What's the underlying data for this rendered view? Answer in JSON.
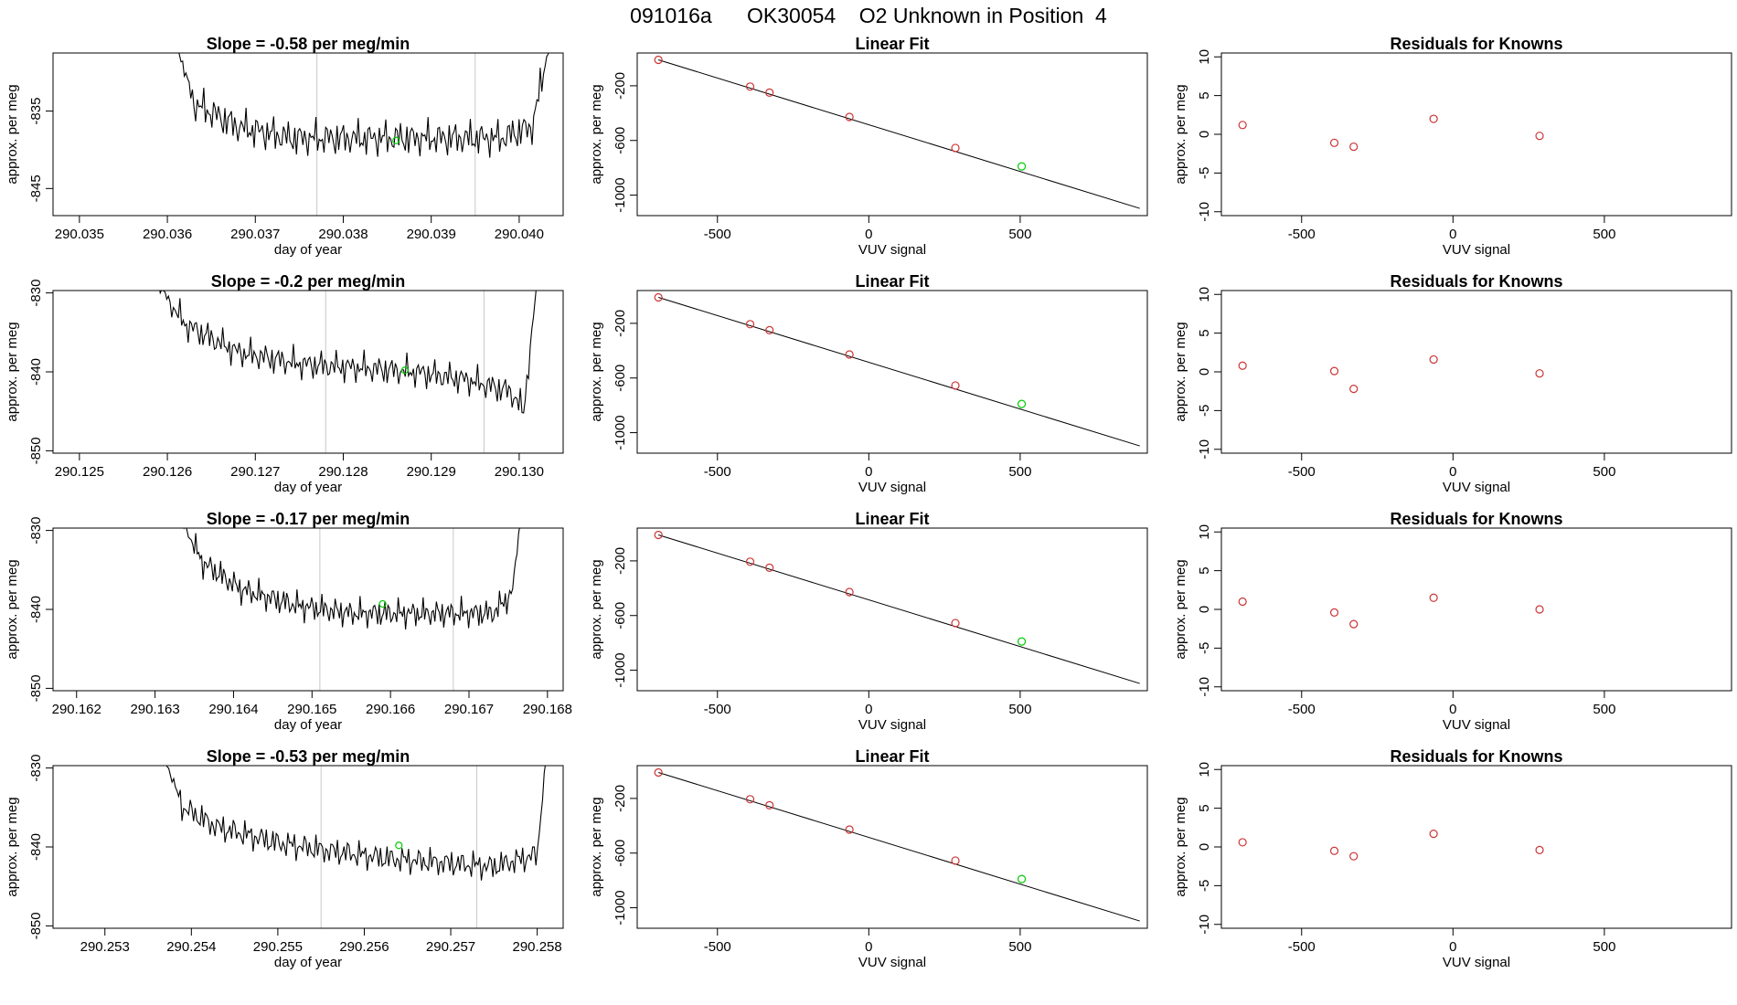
{
  "page_title": "091016a      OK30054    O2 Unknown in Position  4",
  "chart_data": [
    {
      "type": "line",
      "panel": "timeseries",
      "title": "Slope =  -0.58  per meg/min",
      "xlabel": "day of year",
      "ylabel": "approx. per meg",
      "xlim": [
        290.0347,
        290.0405
      ],
      "ylim": [
        -848.5,
        -827.5
      ],
      "xticks": [
        "290.035",
        "290.036",
        "290.037",
        "290.038",
        "290.039",
        "290.040"
      ],
      "xtick_values": [
        290.035,
        290.036,
        290.037,
        290.038,
        290.039,
        290.04
      ],
      "yticks": [
        "-835",
        "-845"
      ],
      "ytick_values": [
        -835,
        -845
      ],
      "x_start": 290.0361,
      "x_end": 290.04035,
      "y_start": -826,
      "y_end": -826,
      "wave_seed": 1,
      "wave_amp": 2.2,
      "profile_x": [
        290.0361,
        290.0363,
        290.0368,
        290.0374,
        290.038,
        290.0386,
        290.0392,
        290.0398,
        290.04015,
        290.04035
      ],
      "profile_y": [
        -826,
        -834,
        -837,
        -838.5,
        -838.5,
        -838.5,
        -838.5,
        -838.5,
        -837,
        -826
      ],
      "vlines": [
        290.0377,
        290.0395
      ],
      "marker": {
        "x": 290.0386,
        "y": -838.8,
        "color": "#00cc00"
      }
    },
    {
      "type": "scatter",
      "panel": "linear-fit",
      "title": "Linear Fit",
      "xlabel": "VUV signal",
      "ylabel": "approx. per meg",
      "xlim": [
        -765,
        920
      ],
      "ylim": [
        -1150,
        40
      ],
      "xticks": [
        "-500",
        "0",
        "500"
      ],
      "xtick_values": [
        -500,
        0,
        500
      ],
      "yticks": [
        "-200",
        "-600",
        "-1000"
      ],
      "ytick_values": [
        -200,
        -600,
        -1000
      ],
      "points_x": [
        -695,
        -392,
        -328,
        -64,
        286
      ],
      "points_y": [
        -10,
        -206,
        -250,
        -428,
        -655
      ],
      "point_color": "#cc3333",
      "unknown": {
        "x": 505,
        "y": -790,
        "color": "#00cc00"
      },
      "fit_line": [
        [
          -695,
          -10
        ],
        [
          895,
          -1097
        ]
      ]
    },
    {
      "type": "scatter",
      "panel": "residuals",
      "title": "Residuals for Knowns",
      "xlabel": "VUV signal",
      "ylabel": "approx. per meg",
      "xlim": [
        -765,
        920
      ],
      "ylim": [
        -10.5,
        10.5
      ],
      "xticks": [
        "-500",
        "0",
        "500"
      ],
      "xtick_values": [
        -500,
        0,
        500
      ],
      "yticks": [
        "10",
        "5",
        "0",
        "-5",
        "-10"
      ],
      "ytick_values": [
        10,
        5,
        0,
        -5,
        -10
      ],
      "points_x": [
        -695,
        -392,
        -328,
        -64,
        286
      ],
      "points_y": [
        1.2,
        -1.1,
        -1.6,
        2.0,
        -0.2
      ],
      "point_color": "#cc3333"
    },
    {
      "type": "line",
      "panel": "timeseries",
      "title": "Slope =  -0.2  per meg/min",
      "xlabel": "day of year",
      "ylabel": "approx. per meg",
      "xlim": [
        290.1247,
        290.1305
      ],
      "ylim": [
        -850.3,
        -829.7
      ],
      "xticks": [
        "290.125",
        "290.126",
        "290.127",
        "290.128",
        "290.129",
        "290.130"
      ],
      "xtick_values": [
        290.125,
        290.126,
        290.127,
        290.128,
        290.129,
        290.13
      ],
      "yticks": [
        "-830",
        "-840",
        "-850"
      ],
      "ytick_values": [
        -830,
        -840,
        -850
      ],
      "x_start": 290.1259,
      "x_end": 290.1302,
      "y_start": -829,
      "y_end": -829,
      "wave_seed": 2,
      "wave_amp": 1.8,
      "profile_x": [
        290.1259,
        290.1262,
        290.1268,
        290.1275,
        290.1282,
        290.1288,
        290.1294,
        290.1299,
        290.13005,
        290.1302
      ],
      "profile_y": [
        -829,
        -834,
        -837.5,
        -839,
        -839.5,
        -840,
        -841,
        -842.5,
        -845,
        -829
      ],
      "vlines": [
        290.1278,
        290.1296
      ],
      "marker": {
        "x": 290.1287,
        "y": -839.8,
        "color": "#00cc00"
      }
    },
    {
      "type": "scatter",
      "panel": "linear-fit",
      "title": "Linear Fit",
      "xlabel": "VUV signal",
      "ylabel": "approx. per meg",
      "xlim": [
        -765,
        920
      ],
      "ylim": [
        -1150,
        40
      ],
      "xticks": [
        "-500",
        "0",
        "500"
      ],
      "xtick_values": [
        -500,
        0,
        500
      ],
      "yticks": [
        "-200",
        "-600",
        "-1000"
      ],
      "ytick_values": [
        -200,
        -600,
        -1000
      ],
      "points_x": [
        -695,
        -392,
        -328,
        -64,
        286
      ],
      "points_y": [
        -10,
        -206,
        -250,
        -428,
        -655
      ],
      "point_color": "#cc3333",
      "unknown": {
        "x": 505,
        "y": -790,
        "color": "#00cc00"
      },
      "fit_line": [
        [
          -695,
          -10
        ],
        [
          895,
          -1097
        ]
      ]
    },
    {
      "type": "scatter",
      "panel": "residuals",
      "title": "Residuals for Knowns",
      "xlabel": "VUV signal",
      "ylabel": "approx. per meg",
      "xlim": [
        -765,
        920
      ],
      "ylim": [
        -10.5,
        10.5
      ],
      "xticks": [
        "-500",
        "0",
        "500"
      ],
      "xtick_values": [
        -500,
        0,
        500
      ],
      "yticks": [
        "10",
        "5",
        "0",
        "-5",
        "-10"
      ],
      "ytick_values": [
        10,
        5,
        0,
        -5,
        -10
      ],
      "points_x": [
        -695,
        -392,
        -328,
        -64,
        286
      ],
      "points_y": [
        0.8,
        0.1,
        -2.2,
        1.6,
        -0.2
      ],
      "point_color": "#cc3333"
    },
    {
      "type": "line",
      "panel": "timeseries",
      "title": "Slope =  -0.17  per meg/min",
      "xlabel": "day of year",
      "ylabel": "approx. per meg",
      "xlim": [
        290.1617,
        290.1682
      ],
      "ylim": [
        -850.3,
        -829.7
      ],
      "xticks": [
        "290.162",
        "290.163",
        "290.164",
        "290.165",
        "290.166",
        "290.167",
        "290.168"
      ],
      "xtick_values": [
        290.162,
        290.163,
        290.164,
        290.165,
        290.166,
        290.167,
        290.168
      ],
      "yticks": [
        "-830",
        "-840",
        "-850"
      ],
      "ytick_values": [
        -830,
        -840,
        -850
      ],
      "x_start": 290.16335,
      "x_end": 290.16765,
      "y_start": -829,
      "y_end": -829,
      "wave_seed": 3,
      "wave_amp": 1.7,
      "profile_x": [
        290.16335,
        290.1636,
        290.1641,
        290.1648,
        290.1655,
        290.1662,
        290.1668,
        290.1673,
        290.16755,
        290.16765
      ],
      "profile_y": [
        -829,
        -834,
        -837.5,
        -839.5,
        -840.5,
        -840.5,
        -840.5,
        -840.5,
        -838,
        -829
      ],
      "vlines": [
        290.1651,
        290.1668
      ],
      "marker": {
        "x": 290.1659,
        "y": -839.3,
        "color": "#00cc00"
      }
    },
    {
      "type": "scatter",
      "panel": "linear-fit",
      "title": "Linear Fit",
      "xlabel": "VUV signal",
      "ylabel": "approx. per meg",
      "xlim": [
        -765,
        920
      ],
      "ylim": [
        -1150,
        40
      ],
      "xticks": [
        "-500",
        "0",
        "500"
      ],
      "xtick_values": [
        -500,
        0,
        500
      ],
      "yticks": [
        "-200",
        "-600",
        "-1000"
      ],
      "ytick_values": [
        -200,
        -600,
        -1000
      ],
      "points_x": [
        -695,
        -392,
        -328,
        -64,
        286
      ],
      "points_y": [
        -10,
        -206,
        -250,
        -428,
        -655
      ],
      "point_color": "#cc3333",
      "unknown": {
        "x": 505,
        "y": -790,
        "color": "#00cc00"
      },
      "fit_line": [
        [
          -695,
          -10
        ],
        [
          895,
          -1097
        ]
      ]
    },
    {
      "type": "scatter",
      "panel": "residuals",
      "title": "Residuals for Knowns",
      "xlabel": "VUV signal",
      "ylabel": "approx. per meg",
      "xlim": [
        -765,
        920
      ],
      "ylim": [
        -10.5,
        10.5
      ],
      "xticks": [
        "-500",
        "0",
        "500"
      ],
      "xtick_values": [
        -500,
        0,
        500
      ],
      "yticks": [
        "10",
        "5",
        "0",
        "-5",
        "-10"
      ],
      "ytick_values": [
        10,
        5,
        0,
        -5,
        -10
      ],
      "points_x": [
        -695,
        -392,
        -328,
        -64,
        286
      ],
      "points_y": [
        1.0,
        -0.4,
        -1.9,
        1.5,
        0.0
      ],
      "point_color": "#cc3333"
    },
    {
      "type": "line",
      "panel": "timeseries",
      "title": "Slope =  -0.53  per meg/min",
      "xlabel": "day of year",
      "ylabel": "approx. per meg",
      "xlim": [
        290.2524,
        290.2583
      ],
      "ylim": [
        -850.3,
        -829.7
      ],
      "xticks": [
        "290.253",
        "290.254",
        "290.255",
        "290.256",
        "290.257",
        "290.258"
      ],
      "xtick_values": [
        290.253,
        290.254,
        290.255,
        290.256,
        290.257,
        290.258
      ],
      "yticks": [
        "-830",
        "-840",
        "-850"
      ],
      "ytick_values": [
        -830,
        -840,
        -850
      ],
      "x_start": 290.2537,
      "x_end": 290.2581,
      "y_start": -829,
      "y_end": -829,
      "wave_seed": 4,
      "wave_amp": 1.7,
      "profile_x": [
        290.2537,
        290.2539,
        290.2543,
        290.255,
        290.2556,
        290.2563,
        290.2569,
        290.2575,
        290.258,
        290.2581
      ],
      "profile_y": [
        -829,
        -835,
        -837.5,
        -839.5,
        -840.5,
        -841.5,
        -842,
        -842.5,
        -841,
        -829
      ],
      "vlines": [
        290.2555,
        290.2573
      ],
      "marker": {
        "x": 290.2564,
        "y": -839.8,
        "color": "#00cc00"
      }
    },
    {
      "type": "scatter",
      "panel": "linear-fit",
      "title": "Linear Fit",
      "xlabel": "VUV signal",
      "ylabel": "approx. per meg",
      "xlim": [
        -765,
        920
      ],
      "ylim": [
        -1150,
        40
      ],
      "xticks": [
        "-500",
        "0",
        "500"
      ],
      "xtick_values": [
        -500,
        0,
        500
      ],
      "yticks": [
        "-200",
        "-600",
        "-1000"
      ],
      "ytick_values": [
        -200,
        -600,
        -1000
      ],
      "points_x": [
        -695,
        -392,
        -328,
        -64,
        286
      ],
      "points_y": [
        -10,
        -206,
        -250,
        -428,
        -655
      ],
      "point_color": "#cc3333",
      "unknown": {
        "x": 505,
        "y": -790,
        "color": "#00cc00"
      },
      "fit_line": [
        [
          -695,
          -10
        ],
        [
          895,
          -1097
        ]
      ]
    },
    {
      "type": "scatter",
      "panel": "residuals",
      "title": "Residuals for Knowns",
      "xlabel": "VUV signal",
      "ylabel": "approx. per meg",
      "xlim": [
        -765,
        920
      ],
      "ylim": [
        -10.5,
        10.5
      ],
      "xticks": [
        "-500",
        "0",
        "500"
      ],
      "xtick_values": [
        -500,
        0,
        500
      ],
      "yticks": [
        "10",
        "5",
        "0",
        "-5",
        "-10"
      ],
      "ytick_values": [
        10,
        5,
        0,
        -5,
        -10
      ],
      "points_x": [
        -695,
        -392,
        -328,
        -64,
        286
      ],
      "points_y": [
        0.6,
        -0.5,
        -1.2,
        1.7,
        -0.4
      ],
      "point_color": "#cc3333"
    }
  ]
}
